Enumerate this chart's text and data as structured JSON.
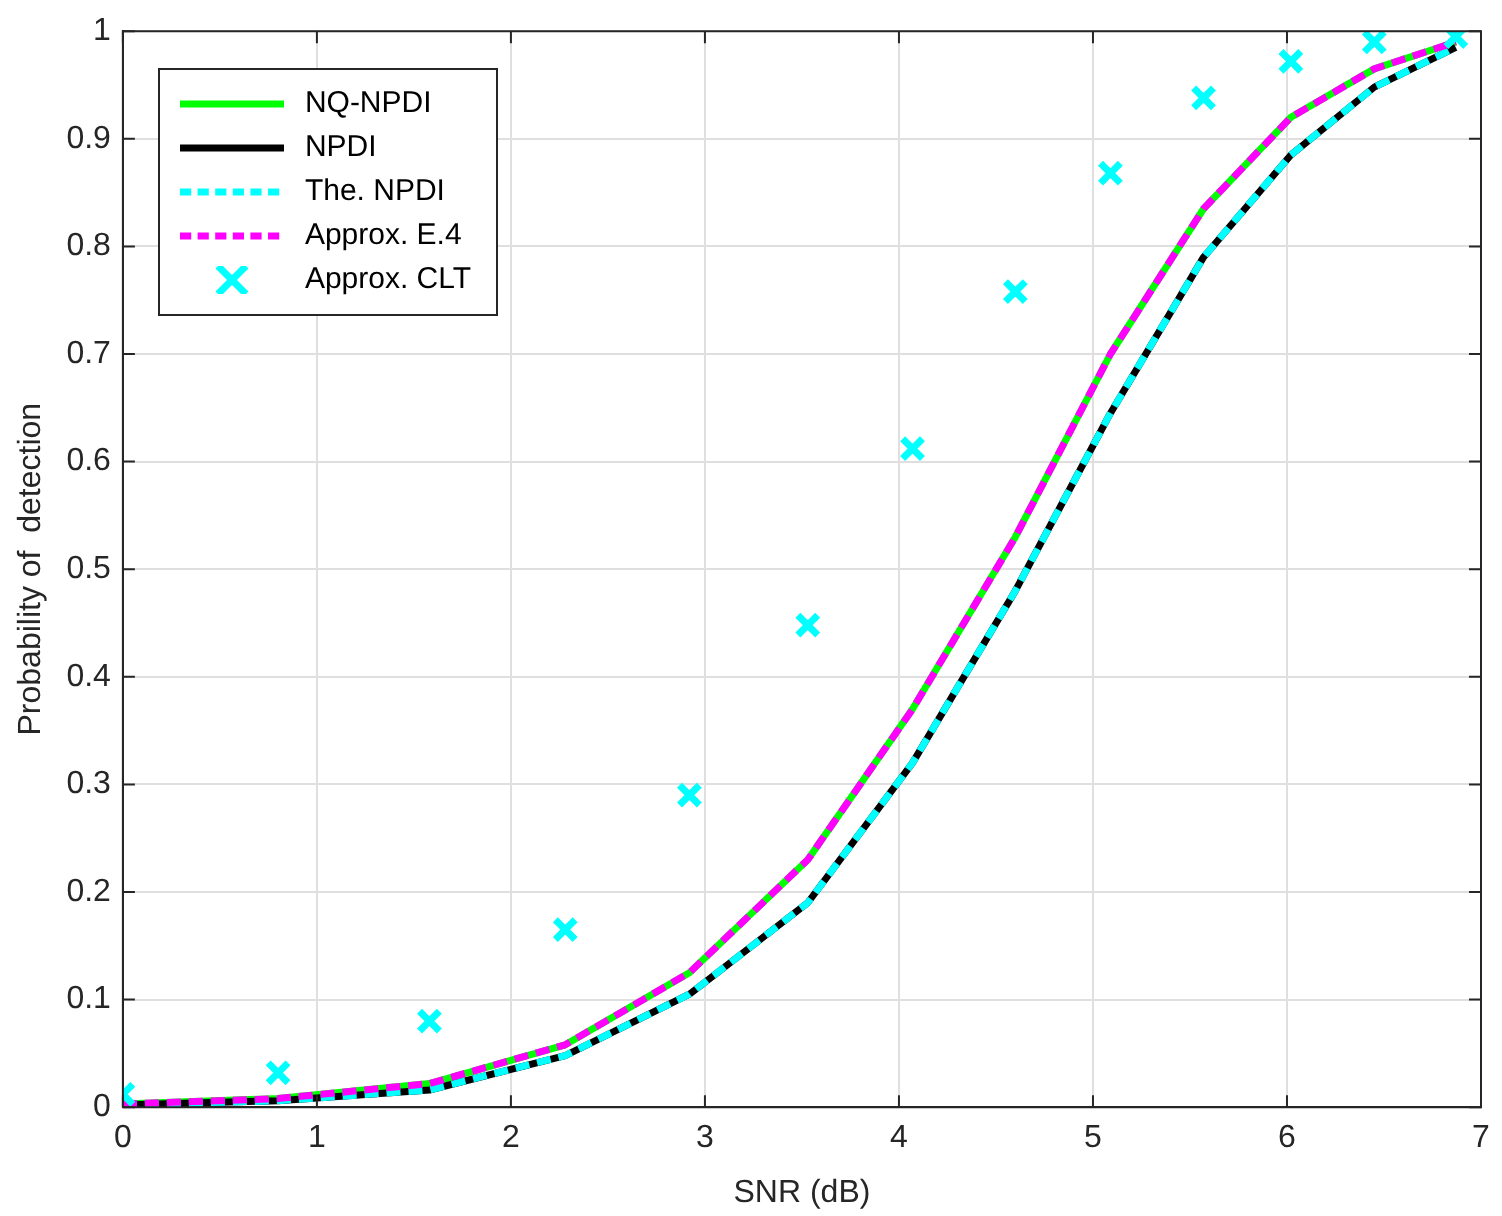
{
  "chart_data": {
    "type": "line",
    "xlabel": "SNR (dB)",
    "ylabel": "Probability of  detection",
    "x": [
      0,
      0.8,
      1.58,
      2.28,
      2.92,
      3.53,
      4.07,
      4.6,
      5.09,
      5.57,
      6.02,
      6.45,
      6.87
    ],
    "series": [
      {
        "name": "NQ-NPDI",
        "color": "#00ff00",
        "line_style": "solid",
        "values": [
          0.003,
          0.008,
          0.022,
          0.058,
          0.125,
          0.23,
          0.37,
          0.53,
          0.7,
          0.835,
          0.92,
          0.965,
          0.99
        ]
      },
      {
        "name": "NPDI",
        "color": "#000000",
        "line_style": "solid",
        "values": [
          0.002,
          0.006,
          0.016,
          0.048,
          0.105,
          0.19,
          0.32,
          0.48,
          0.645,
          0.79,
          0.885,
          0.948,
          0.985
        ]
      },
      {
        "name": "The. NPDI",
        "color": "#00ffff",
        "line_style": "dashed",
        "values": [
          0.002,
          0.006,
          0.016,
          0.048,
          0.105,
          0.19,
          0.32,
          0.48,
          0.645,
          0.79,
          0.885,
          0.948,
          0.985
        ]
      },
      {
        "name": "Approx. E.4",
        "color": "#ff00ff",
        "line_style": "dashed",
        "values": [
          0.003,
          0.008,
          0.022,
          0.058,
          0.125,
          0.23,
          0.37,
          0.53,
          0.7,
          0.835,
          0.92,
          0.965,
          0.99
        ]
      },
      {
        "name": "Approx. CLT",
        "color": "#00ffff",
        "type": "scatter",
        "marker": "cross",
        "values": [
          0.012,
          0.032,
          0.08,
          0.165,
          0.29,
          0.448,
          0.612,
          0.758,
          0.868,
          0.938,
          0.972,
          0.99,
          0.995
        ]
      }
    ],
    "xlim": [
      0,
      7
    ],
    "xticks": [
      0,
      1,
      2,
      3,
      4,
      5,
      6,
      7
    ],
    "ylim": [
      0,
      1
    ],
    "yticks": [
      0,
      0.1,
      0.2,
      0.3,
      0.4,
      0.5,
      0.6,
      0.7,
      0.8,
      0.9,
      1
    ],
    "grid": true,
    "legend": "top left"
  }
}
